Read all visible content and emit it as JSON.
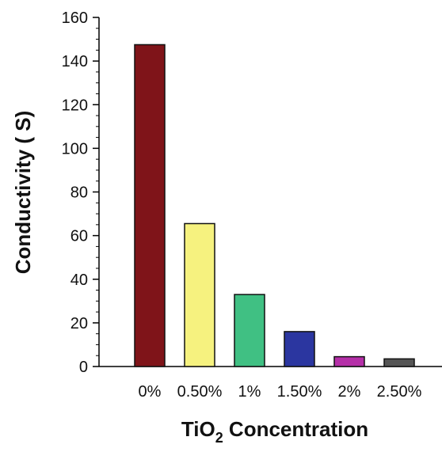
{
  "chart_data": {
    "type": "bar",
    "categories": [
      "0%",
      "0.50%",
      "1%",
      "1.50%",
      "2%",
      "2.50%"
    ],
    "values": [
      147.5,
      65.5,
      33,
      16,
      4.5,
      3.5
    ],
    "colors": [
      "#7f1419",
      "#f6f27f",
      "#40c083",
      "#2b36a0",
      "#b52fa8",
      "#555555"
    ],
    "xlabel": {
      "main": "TiO",
      "subscript": "2",
      "rest": " Concentration"
    },
    "ylabel": "Conductivity ( S)",
    "ylim": [
      0,
      160
    ],
    "yticks": [
      "0",
      "20",
      "40",
      "60",
      "80",
      "100",
      "120",
      "140",
      "160"
    ],
    "grid": false,
    "legend": "none"
  }
}
